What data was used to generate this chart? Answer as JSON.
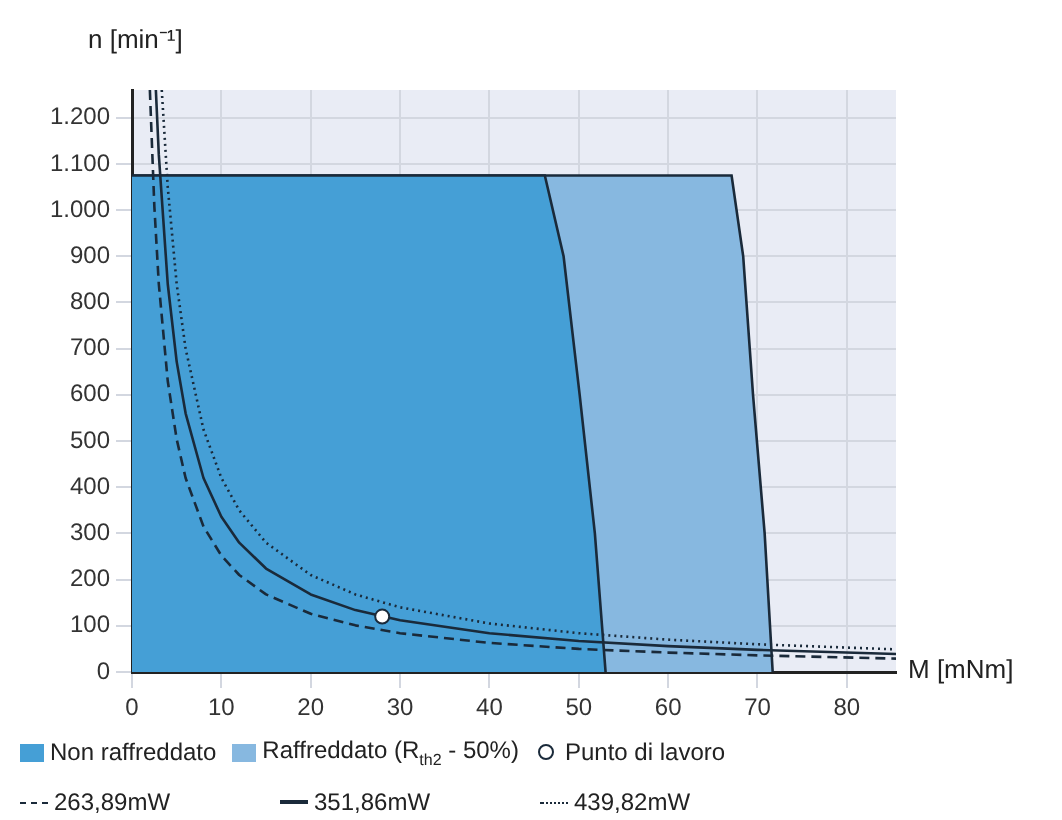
{
  "chart_data": {
    "type": "area",
    "xlabel": "M [mNm]",
    "ylabel": "n [min⁻¹]",
    "xlim": [
      0,
      85.5
    ],
    "ylim": [
      0,
      1260
    ],
    "xticks": [
      0,
      10,
      20,
      30,
      40,
      50,
      60,
      70,
      80
    ],
    "yticks": [
      0,
      100,
      200,
      300,
      400,
      500,
      600,
      700,
      800,
      900,
      {
        "value": 1000,
        "label": "1.000"
      },
      {
        "value": 1100,
        "label": "1.100"
      },
      {
        "value": 1200,
        "label": "1.200"
      }
    ],
    "grid": true,
    "legend": "bottom",
    "series": [
      {
        "name": "Non raffreddato",
        "color": "#459fd6",
        "x": [
          0,
          46.2,
          48.3,
          50.1,
          51.8,
          53
        ],
        "values": [
          1075,
          1075,
          900,
          600,
          300,
          0
        ]
      },
      {
        "name": "Raffreddato (R$_{th2}$ - 50%)",
        "color": "#87b8e0",
        "x": [
          0,
          67.1,
          68.4,
          69.5,
          70.8,
          71.7
        ],
        "values": [
          1075,
          1075,
          900,
          600,
          300,
          0
        ]
      },
      {
        "name": "Punto di lavoro",
        "type": "scatter",
        "color": "#ffffff",
        "marker": "circle",
        "x": [
          28
        ],
        "values": [
          120
        ]
      },
      {
        "name": "263,89mW",
        "type": "line",
        "color": "#1a2a3a",
        "line_style": "dashed",
        "x": [
          2,
          2.5,
          3,
          4,
          5,
          6,
          8,
          10,
          12,
          15,
          20,
          25,
          30,
          40,
          50,
          60,
          70,
          85.5
        ],
        "values": [
          1260,
          1008,
          840,
          630,
          504,
          420,
          315,
          252,
          210,
          168,
          126,
          101,
          84,
          63,
          50,
          42,
          36,
          29
        ]
      },
      {
        "name": "351,86mW",
        "type": "line",
        "color": "#1a2a3a",
        "line_style": "solid",
        "x": [
          2.67,
          3,
          4,
          5,
          6,
          8,
          10,
          12,
          15,
          20,
          25,
          30,
          40,
          50,
          60,
          70,
          85.5
        ],
        "values": [
          1260,
          1120,
          840,
          672,
          560,
          420,
          336,
          280,
          224,
          168,
          134,
          112,
          84,
          67,
          56,
          48,
          39
        ]
      },
      {
        "name": "439,82mW",
        "type": "line",
        "color": "#1a2a3a",
        "line_style": "dotted",
        "x": [
          3.33,
          4,
          5,
          6,
          8,
          10,
          12,
          15,
          20,
          25,
          30,
          40,
          50,
          60,
          70,
          85.5
        ],
        "values": [
          1260,
          1050,
          840,
          700,
          525,
          420,
          350,
          280,
          210,
          168,
          140,
          105,
          84,
          70,
          60,
          49
        ]
      }
    ]
  }
}
